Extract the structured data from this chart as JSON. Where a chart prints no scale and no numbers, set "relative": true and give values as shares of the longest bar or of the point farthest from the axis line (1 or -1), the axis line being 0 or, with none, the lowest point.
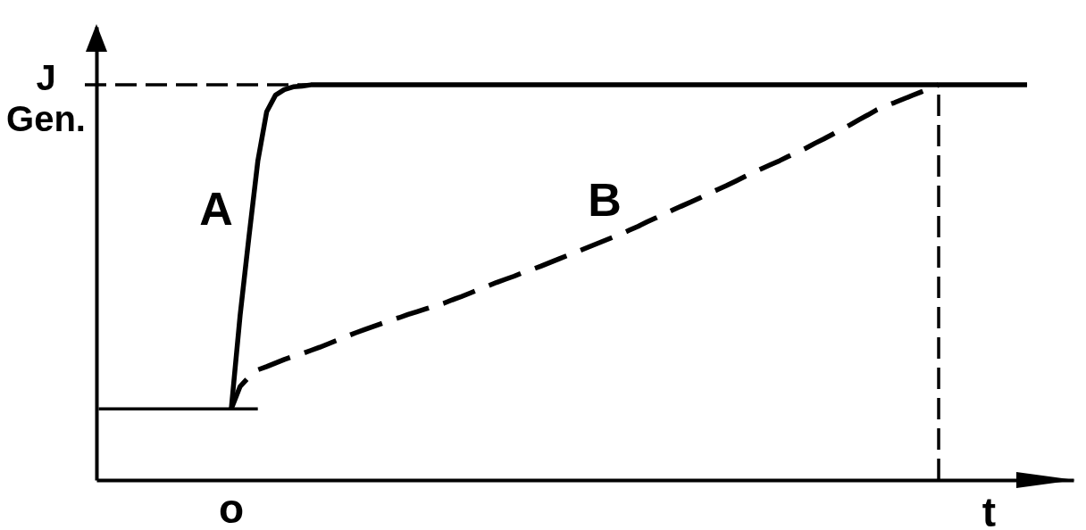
{
  "chart_data": {
    "type": "line",
    "relative": true,
    "xlabel": "t",
    "categories": [
      null,
      null,
      null,
      null,
      null,
      null,
      null,
      null,
      null,
      null,
      null,
      null,
      null,
      null,
      null,
      null,
      null,
      null,
      null,
      null,
      null,
      null,
      null,
      null,
      null,
      null,
      null,
      null,
      null,
      null,
      null,
      null,
      null,
      null,
      null,
      null,
      null,
      null,
      null,
      null,
      null,
      null,
      null,
      null,
      null,
      null,
      null,
      null,
      null,
      null,
      null,
      null,
      null,
      null,
      null,
      null,
      null,
      null,
      null,
      null,
      null,
      null,
      null,
      null,
      null,
      null,
      null,
      null,
      null,
      null,
      null,
      null,
      null,
      null,
      null,
      null,
      null,
      null,
      null,
      null,
      null,
      null,
      null,
      null,
      null,
      null,
      null,
      null,
      null,
      null,
      null,
      null,
      null,
      null,
      null,
      null,
      null,
      null,
      null,
      null,
      null,
      null,
      null,
      null,
      null,
      null,
      null,
      null,
      null,
      null,
      null
    ],
    "series": [
      {
        "name": "A",
        "color": "#000000",
        "line_style": "solid",
        "values": [
          null,
          null,
          null,
          null,
          null,
          null,
          null,
          null,
          null,
          null,
          null,
          null,
          null,
          null,
          null,
          0.18,
          0.417,
          0.616,
          0.807,
          0.932,
          0.974,
          0.988,
          0.995,
          0.997,
          1,
          1,
          1,
          1,
          1,
          1,
          1,
          1,
          1,
          1,
          1,
          1,
          1,
          1,
          1,
          1,
          1,
          1,
          1,
          1,
          1,
          1,
          1,
          1,
          1,
          1,
          1,
          1,
          1,
          1,
          1,
          1,
          1,
          1,
          1,
          1,
          1,
          1,
          1,
          1,
          1,
          1,
          1,
          1,
          1,
          1,
          1,
          1,
          1,
          1,
          1,
          1,
          1,
          1,
          1,
          1,
          1,
          1,
          1,
          1,
          1,
          1,
          1,
          1,
          1,
          1,
          1,
          1,
          1,
          1,
          1,
          1,
          1,
          1,
          1,
          1,
          1,
          1,
          1,
          1,
          1,
          1,
          null,
          null,
          null,
          null,
          null
        ]
      },
      {
        "name": "B",
        "color": "#000000",
        "line_style": "dashed",
        "values": [
          null,
          null,
          null,
          null,
          null,
          null,
          null,
          null,
          null,
          null,
          null,
          null,
          null,
          null,
          null,
          0.18,
          0.237,
          0.261,
          0.279,
          0.287,
          0.296,
          0.305,
          0.313,
          0.32,
          0.328,
          0.336,
          0.345,
          0.354,
          0.363,
          0.372,
          0.38,
          0.388,
          0.396,
          0.404,
          0.411,
          0.419,
          0.426,
          0.433,
          0.44,
          0.447,
          0.456,
          0.464,
          0.473,
          0.482,
          0.491,
          0.5,
          0.508,
          0.516,
          0.525,
          0.533,
          0.541,
          0.55,
          0.559,
          0.568,
          0.577,
          0.586,
          0.595,
          0.604,
          0.613,
          0.622,
          0.632,
          0.642,
          0.653,
          0.663,
          0.674,
          0.684,
          0.694,
          0.704,
          0.714,
          0.725,
          0.735,
          0.745,
          0.756,
          0.767,
          0.778,
          0.788,
          0.798,
          0.808,
          0.819,
          0.829,
          0.84,
          0.852,
          0.863,
          0.875,
          0.887,
          0.899,
          0.912,
          0.924,
          0.937,
          0.947,
          0.955,
          0.964,
          0.973,
          0.982,
          0.991,
          1,
          null,
          null,
          null,
          null,
          null,
          null,
          null,
          null,
          null,
          null,
          null,
          null,
          null,
          null,
          null
        ]
      },
      {
        "color": "#000000",
        "line_style": "solid",
        "values": [
          0.18,
          0.18,
          0.18,
          0.18,
          0.18,
          0.18,
          0.18,
          0.18,
          0.18,
          0.18,
          0.18,
          0.18,
          0.18,
          0.18,
          0.18,
          0.18,
          0.18,
          0.18,
          0.18,
          null,
          null,
          null,
          null,
          null,
          null,
          null,
          null,
          null,
          null,
          null,
          null,
          null,
          null,
          null,
          null,
          null,
          null,
          null,
          null,
          null,
          null,
          null,
          null,
          null,
          null,
          null,
          null,
          null,
          null,
          null,
          null,
          null,
          null,
          null,
          null,
          null,
          null,
          null,
          null,
          null,
          null,
          null,
          null,
          null,
          null,
          null,
          null,
          null,
          null,
          null,
          null,
          null,
          null,
          null,
          null,
          null,
          null,
          null,
          null,
          null,
          null,
          null,
          null,
          null,
          null,
          null,
          null,
          null,
          null,
          null,
          null,
          null,
          null,
          null,
          null,
          null,
          null,
          null,
          null,
          null,
          null,
          null,
          null,
          null,
          null,
          null,
          null,
          null,
          null,
          null,
          null
        ]
      }
    ],
    "ref_lines": [
      {
        "axis": "y",
        "value": 1,
        "label": "J Gen.",
        "line_style": "dashed",
        "color": "#000000"
      }
    ],
    "annotations": [
      "o"
    ]
  }
}
